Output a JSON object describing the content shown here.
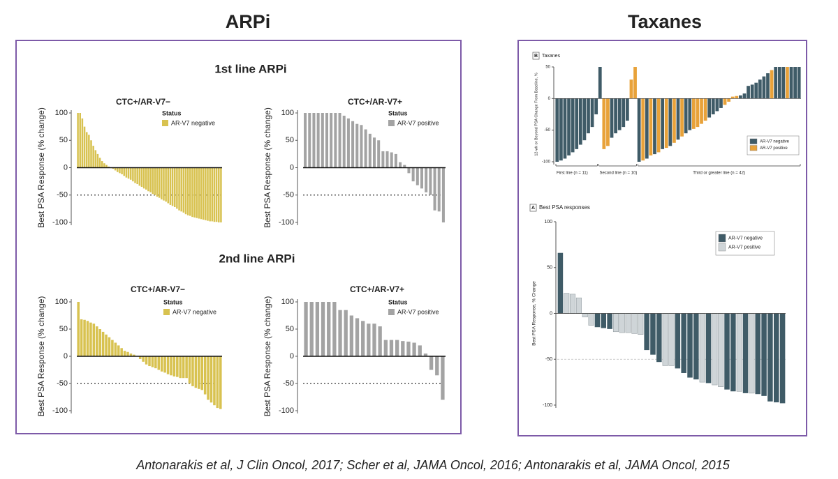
{
  "slide": {
    "left_title": "ARPi",
    "right_title": "Taxanes",
    "headings": [
      "1st line ARPi",
      "2nd line ARPi"
    ],
    "citation": "Antonarakis et al, J Clin Oncol, 2017; Scher et al, JAMA Oncol, 2016; Antonarakis et al, JAMA Oncol, 2015"
  },
  "chart_data": [
    {
      "type": "bar",
      "title": "CTC+/AR-V7−",
      "ylabel": "Best PSA Response (% change)",
      "legend_title": "Status",
      "ylim": [
        -100,
        100
      ],
      "yticks": [
        100,
        50,
        0,
        -50,
        -100
      ],
      "reference_line": -50,
      "series": [
        {
          "name": "AR-V7 negative",
          "color": "#d8c250",
          "values": [
            100,
            100,
            90,
            75,
            65,
            60,
            50,
            40,
            32,
            25,
            18,
            12,
            8,
            5,
            2,
            0,
            -2,
            -5,
            -8,
            -10,
            -12,
            -15,
            -18,
            -20,
            -22,
            -25,
            -28,
            -30,
            -33,
            -35,
            -38,
            -40,
            -43,
            -45,
            -48,
            -50,
            -53,
            -55,
            -58,
            -60,
            -62,
            -65,
            -68,
            -70,
            -72,
            -75,
            -78,
            -80,
            -82,
            -85,
            -87,
            -88,
            -90,
            -91,
            -92,
            -93,
            -94,
            -95,
            -96,
            -97,
            -98,
            -98,
            -99,
            -99,
            -100,
            -100
          ]
        }
      ]
    },
    {
      "type": "bar",
      "title": "CTC+/AR-V7+",
      "ylabel": "Best PSA Response (% change)",
      "legend_title": "Status",
      "ylim": [
        -100,
        100
      ],
      "yticks": [
        100,
        50,
        0,
        -50,
        -100
      ],
      "reference_line": -50,
      "series": [
        {
          "name": "AR-V7 positive",
          "color": "#a3a3a3",
          "values": [
            100,
            100,
            100,
            100,
            100,
            100,
            100,
            100,
            100,
            95,
            90,
            85,
            80,
            78,
            70,
            62,
            55,
            50,
            30,
            30,
            28,
            25,
            10,
            5,
            -10,
            -25,
            -32,
            -38,
            -45,
            -50,
            -78,
            -80,
            -100
          ]
        }
      ]
    },
    {
      "type": "bar",
      "title": "CTC+/AR-V7−",
      "ylabel": "Best PSA Response (% change)",
      "legend_title": "Status",
      "ylim": [
        -100,
        100
      ],
      "yticks": [
        100,
        50,
        0,
        -50,
        -100
      ],
      "reference_line": -50,
      "series": [
        {
          "name": "AR-V7 negative",
          "color": "#d8c250",
          "values": [
            100,
            68,
            67,
            65,
            62,
            60,
            55,
            50,
            45,
            40,
            35,
            30,
            25,
            20,
            15,
            10,
            8,
            5,
            3,
            0,
            -5,
            -10,
            -15,
            -18,
            -20,
            -22,
            -25,
            -28,
            -30,
            -33,
            -35,
            -37,
            -38,
            -40,
            -40,
            -40,
            -50,
            -55,
            -58,
            -60,
            -62,
            -70,
            -80,
            -85,
            -90,
            -95,
            -97
          ]
        }
      ]
    },
    {
      "type": "bar",
      "title": "CTC+/AR-V7+",
      "ylabel": "Best PSA Response (% change)",
      "legend_title": "Status",
      "ylim": [
        -100,
        100
      ],
      "yticks": [
        100,
        50,
        0,
        -50,
        -100
      ],
      "reference_line": -50,
      "series": [
        {
          "name": "AR-V7 positive",
          "color": "#a3a3a3",
          "values": [
            100,
            100,
            100,
            100,
            100,
            100,
            85,
            85,
            75,
            70,
            65,
            60,
            60,
            55,
            30,
            30,
            30,
            28,
            27,
            25,
            20,
            5,
            -25,
            -35,
            -80
          ]
        }
      ]
    },
    {
      "type": "bar",
      "panel_label": "B",
      "title": "Taxanes",
      "ylabel": "12-wk or Beyond PSA Change From Baseline, %",
      "ylim": [
        -100,
        50
      ],
      "yticks": [
        50,
        0,
        -50,
        -100
      ],
      "groups": [
        {
          "label": "First line (n = 11)",
          "n": 11
        },
        {
          "label": "Second line (n = 10)",
          "n": 10
        },
        {
          "label": "Third or greater line (n = 42)",
          "n": 42
        }
      ],
      "series": [
        {
          "name": "AR-V7 negative",
          "color": "#3f5b67",
          "values": [
            -100,
            -98,
            -95,
            -90,
            -85,
            -80,
            -73,
            -66,
            -55,
            -45,
            -25,
            50,
            null,
            null,
            -62,
            -55,
            -50,
            -45,
            -35,
            null,
            null,
            -100,
            null,
            -95,
            null,
            -88,
            null,
            -80,
            null,
            -75,
            null,
            -65,
            null,
            -55,
            -50,
            null,
            null,
            null,
            null,
            -30,
            -25,
            -20,
            -15,
            null,
            null,
            null,
            null,
            5,
            8,
            20,
            22,
            25,
            30,
            35,
            40,
            null,
            50,
            50,
            50,
            null,
            50,
            50,
            50
          ]
        },
        {
          "name": "AR-V7 positive",
          "color": "#e8a23a",
          "values": [
            null,
            null,
            null,
            null,
            null,
            null,
            null,
            null,
            null,
            null,
            null,
            null,
            -80,
            -75,
            null,
            null,
            null,
            null,
            null,
            30,
            50,
            null,
            -98,
            null,
            -90,
            null,
            -85,
            null,
            -78,
            null,
            -70,
            null,
            -60,
            null,
            null,
            -48,
            -45,
            -40,
            -35,
            null,
            null,
            null,
            null,
            -10,
            -5,
            3,
            4,
            null,
            null,
            null,
            null,
            null,
            null,
            null,
            null,
            45,
            null,
            null,
            null,
            50,
            null,
            null,
            null
          ]
        }
      ]
    },
    {
      "type": "bar",
      "panel_label": "A",
      "title": "Best PSA responses",
      "ylabel": "Best PSA Response, % Change",
      "ylim": [
        -100,
        100
      ],
      "yticks": [
        100,
        50,
        0,
        -50,
        -100
      ],
      "reference_line": -50,
      "series": [
        {
          "name": "AR-V7 negative",
          "color": "#3f5b67",
          "values": [
            66,
            null,
            null,
            null,
            null,
            null,
            -15,
            -16,
            -17,
            null,
            null,
            null,
            null,
            null,
            -40,
            -45,
            -53,
            null,
            null,
            -60,
            -65,
            -70,
            -72,
            null,
            -76,
            null,
            null,
            -83,
            -85,
            null,
            -87,
            null,
            -88,
            -90,
            -96,
            -97,
            -98
          ]
        },
        {
          "name": "AR-V7 positive",
          "color": "#cfd5d8",
          "values": [
            null,
            22,
            21,
            17,
            -4,
            -13,
            null,
            null,
            null,
            -20,
            -21,
            -21,
            -22,
            -23,
            null,
            null,
            null,
            -57,
            -57,
            null,
            null,
            null,
            null,
            -75,
            null,
            -78,
            -80,
            null,
            null,
            -85,
            null,
            -87,
            null,
            null,
            null,
            null,
            null
          ]
        }
      ]
    }
  ]
}
